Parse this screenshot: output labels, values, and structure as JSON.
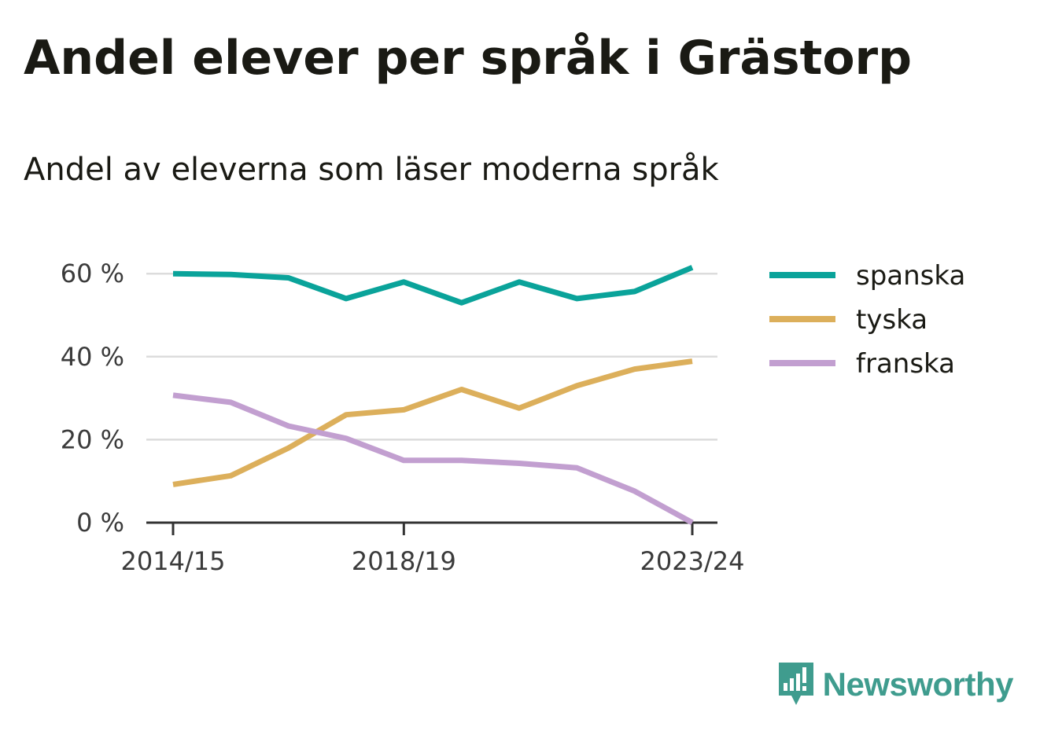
{
  "header": {
    "title": "Andel elever per språk i Grästorp",
    "subtitle": "Andel av eleverna som läser moderna språk"
  },
  "brand": {
    "name": "Newsworthy",
    "icon": "newsworthy-logo-icon",
    "color": "#3f9c8e"
  },
  "chart_data": {
    "type": "line",
    "x": [
      "2014/15",
      "2015/16",
      "2016/17",
      "2017/18",
      "2018/19",
      "2019/20",
      "2020/21",
      "2021/22",
      "2022/23",
      "2023/24"
    ],
    "x_tick_labels": [
      "2014/15",
      "2018/19",
      "2023/24"
    ],
    "y_ticks": [
      0,
      20,
      40,
      60
    ],
    "y_tick_labels": [
      "0 %",
      "20 %",
      "40 %",
      "60 %"
    ],
    "ylim": [
      0,
      70
    ],
    "grid": true,
    "legend_position": "right",
    "series": [
      {
        "name": "spanska",
        "color": "#0aa39a",
        "values": [
          60,
          59.8,
          59,
          54,
          58,
          53,
          58,
          54,
          55.7,
          61.5
        ]
      },
      {
        "name": "tyska",
        "color": "#dcaf5b",
        "values": [
          9.2,
          11.3,
          18,
          26,
          27.2,
          32.1,
          27.6,
          33,
          37,
          38.9
        ]
      },
      {
        "name": "franska",
        "color": "#c29fd0",
        "values": [
          30.7,
          29,
          23.3,
          20.3,
          15,
          15,
          14.3,
          13.2,
          7.6,
          0
        ]
      }
    ]
  }
}
